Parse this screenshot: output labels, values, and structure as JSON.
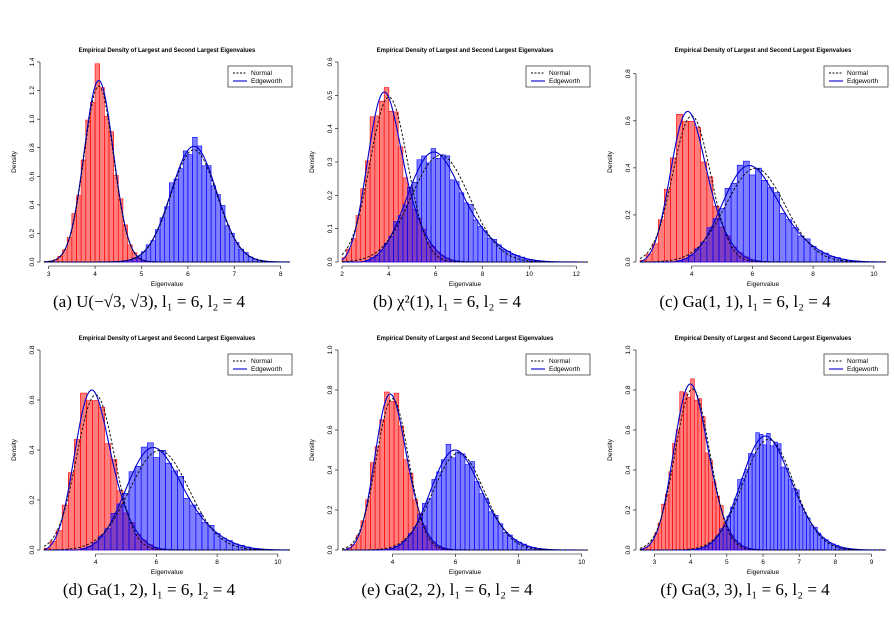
{
  "chart_data": [
    {
      "id": "a",
      "type": "histogram",
      "caption": "(a) U(−√3, √3), l₁ = 6, l₂ = 4",
      "title": "Empirical Density of Largest and Second Largest Eigenvalues",
      "xlabel": "Eigenvalue",
      "ylabel": "Density",
      "xlim": [
        2.9,
        8.2
      ],
      "ylim": [
        0,
        1.4
      ],
      "xticks": [
        3,
        4,
        5,
        6,
        7,
        8
      ],
      "yticks": [
        0,
        0.2,
        0.4,
        0.6,
        0.8,
        1.0,
        1.2,
        1.4
      ],
      "ytick_labels": [
        "0.0",
        "0.2",
        "0.4",
        "0.6",
        "0.8",
        "1.0",
        "1.2",
        "1.4"
      ],
      "bin_width": 0.1,
      "legend": {
        "position": "top-right",
        "entries": [
          "Normal",
          "Edgeworth"
        ]
      },
      "series": [
        {
          "role": "second-largest",
          "color": "#ff0000",
          "mean": 4.08,
          "sd": 0.315,
          "skew": 0.0,
          "peak_density": 1.27
        },
        {
          "role": "largest",
          "color": "#0000ff",
          "mean": 6.13,
          "sd": 0.49,
          "skew": 0.0,
          "peak_density": 0.81
        }
      ]
    },
    {
      "id": "b",
      "type": "histogram",
      "caption": "(b) χ²(1), l₁ = 6, l₂ = 4",
      "title": "Empirical Density of Largest and Second Largest Eigenvalues",
      "xlabel": "Eigenvalue",
      "ylabel": "Density",
      "xlim": [
        2.0,
        12.5
      ],
      "ylim": [
        0,
        0.6
      ],
      "xticks": [
        2,
        4,
        6,
        8,
        10,
        12
      ],
      "yticks": [
        0,
        0.1,
        0.2,
        0.3,
        0.4,
        0.5,
        0.6
      ],
      "ytick_labels": [
        "0.0",
        "0.1",
        "0.2",
        "0.3",
        "0.4",
        "0.5",
        "0.6"
      ],
      "bin_width": 0.2,
      "legend": {
        "position": "top-right",
        "entries": [
          "Normal",
          "Edgeworth"
        ]
      },
      "series": [
        {
          "role": "second-largest",
          "color": "#ff0000",
          "mean": 4.0,
          "sd": 0.8,
          "skew": 0.55,
          "peak_density": 0.51
        },
        {
          "role": "largest",
          "color": "#0000ff",
          "mean": 6.2,
          "sd": 1.25,
          "skew": 0.5,
          "peak_density": 0.33
        }
      ]
    },
    {
      "id": "c",
      "type": "histogram",
      "caption": "(c) Ga(1, 1), l₁ = 6, l₂ = 4",
      "title": "Empirical Density of Largest and Second Largest Eigenvalues",
      "xlabel": "Eigenvalue",
      "ylabel": "Density",
      "xlim": [
        2.3,
        10.4
      ],
      "ylim": [
        0,
        0.85
      ],
      "xticks": [
        4,
        6,
        8,
        10
      ],
      "yticks": [
        0,
        0.2,
        0.4,
        0.6,
        0.8
      ],
      "ytick_labels": [
        "0.0",
        "0.2",
        "0.4",
        "0.6",
        "0.8"
      ],
      "bin_width": 0.2,
      "legend": {
        "position": "top-right",
        "entries": [
          "Normal",
          "Edgeworth"
        ]
      },
      "series": [
        {
          "role": "second-largest",
          "color": "#ff0000",
          "mean": 4.0,
          "sd": 0.62,
          "skew": 0.45,
          "peak_density": 0.64
        },
        {
          "role": "largest",
          "color": "#0000ff",
          "mean": 6.1,
          "sd": 0.98,
          "skew": 0.45,
          "peak_density": 0.41
        }
      ]
    },
    {
      "id": "d",
      "type": "histogram",
      "caption": "(d) Ga(1, 2), l₁ = 6, l₂ = 4",
      "title": "Empirical Density of Largest and Second Largest Eigenvalues",
      "xlabel": "Eigenvalue",
      "ylabel": "Density",
      "xlim": [
        2.3,
        10.4
      ],
      "ylim": [
        0,
        0.8
      ],
      "xticks": [
        4,
        6,
        8,
        10
      ],
      "yticks": [
        0,
        0.2,
        0.4,
        0.6,
        0.8
      ],
      "ytick_labels": [
        "0.0",
        "0.2",
        "0.4",
        "0.6",
        "0.8"
      ],
      "bin_width": 0.2,
      "legend": {
        "position": "top-right",
        "entries": [
          "Normal",
          "Edgeworth"
        ]
      },
      "series": [
        {
          "role": "second-largest",
          "color": "#ff0000",
          "mean": 4.0,
          "sd": 0.62,
          "skew": 0.45,
          "peak_density": 0.64
        },
        {
          "role": "largest",
          "color": "#0000ff",
          "mean": 6.1,
          "sd": 0.98,
          "skew": 0.45,
          "peak_density": 0.41
        }
      ]
    },
    {
      "id": "e",
      "type": "histogram",
      "caption": "(e) Ga(2, 2), l₁ = 6, l₂ = 4",
      "title": "Empirical Density of Largest and Second Largest Eigenvalues",
      "xlabel": "Eigenvalue",
      "ylabel": "Density",
      "xlim": [
        2.4,
        10.2
      ],
      "ylim": [
        0,
        1.0
      ],
      "xticks": [
        4,
        6,
        8,
        10
      ],
      "yticks": [
        0,
        0.2,
        0.4,
        0.6,
        0.8,
        1.0
      ],
      "ytick_labels": [
        "0.0",
        "0.2",
        "0.4",
        "0.6",
        "0.8",
        "1.0"
      ],
      "bin_width": 0.15,
      "legend": {
        "position": "top-right",
        "entries": [
          "Normal",
          "Edgeworth"
        ]
      },
      "series": [
        {
          "role": "second-largest",
          "color": "#ff0000",
          "mean": 4.0,
          "sd": 0.51,
          "skew": 0.3,
          "peak_density": 0.78
        },
        {
          "role": "largest",
          "color": "#0000ff",
          "mean": 6.1,
          "sd": 0.81,
          "skew": 0.3,
          "peak_density": 0.5
        }
      ]
    },
    {
      "id": "f",
      "type": "histogram",
      "caption": "(f) Ga(3, 3), l₁ = 6, l₂ = 4",
      "title": "Empirical Density of Largest and Second Largest Eigenvalues",
      "xlabel": "Eigenvalue",
      "ylabel": "Density",
      "xlim": [
        2.6,
        9.4
      ],
      "ylim": [
        0,
        1.0
      ],
      "xticks": [
        3,
        4,
        5,
        6,
        7,
        8,
        9
      ],
      "yticks": [
        0,
        0.2,
        0.4,
        0.6,
        0.8,
        1.0
      ],
      "ytick_labels": [
        "0.0",
        "0.2",
        "0.4",
        "0.6",
        "0.8",
        "1.0"
      ],
      "bin_width": 0.1,
      "legend": {
        "position": "top-right",
        "entries": [
          "Normal",
          "Edgeworth"
        ]
      },
      "series": [
        {
          "role": "second-largest",
          "color": "#ff0000",
          "mean": 4.05,
          "sd": 0.48,
          "skew": 0.25,
          "peak_density": 0.83
        },
        {
          "role": "largest",
          "color": "#0000ff",
          "mean": 6.15,
          "sd": 0.7,
          "skew": 0.25,
          "peak_density": 0.57
        }
      ]
    }
  ]
}
